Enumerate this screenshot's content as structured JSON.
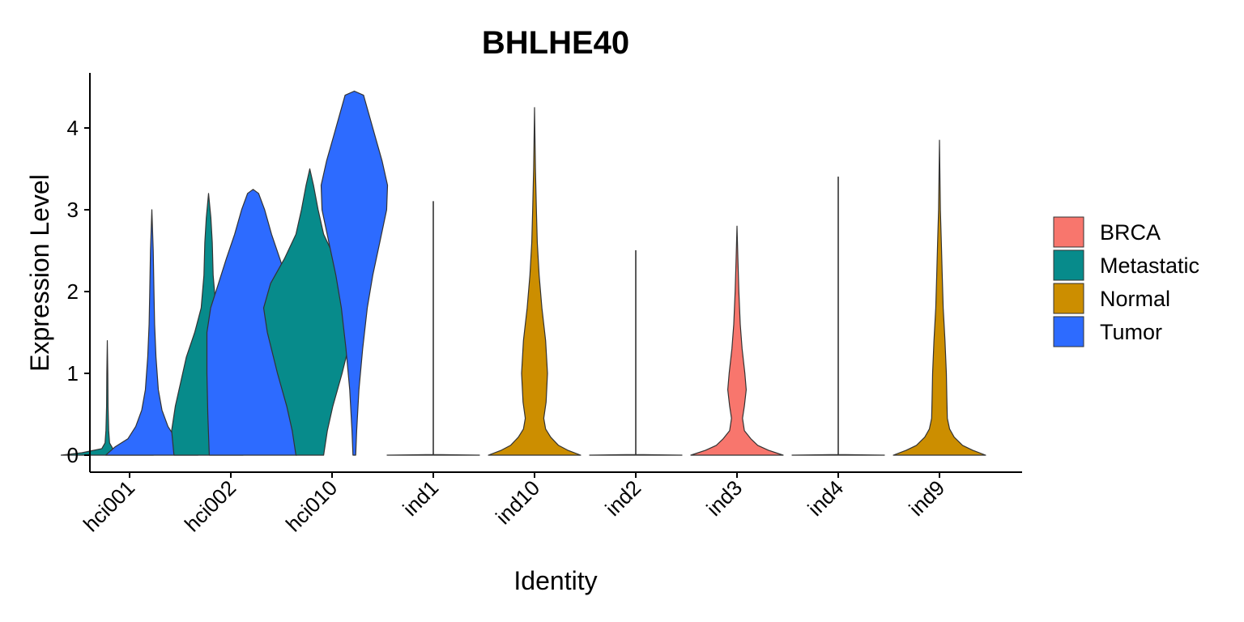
{
  "chart_data": {
    "type": "violin",
    "title": "BHLHE40",
    "xlabel": "Identity",
    "ylabel": "Expression Level",
    "ylim": [
      -0.2,
      4.7
    ],
    "yticks": [
      0,
      1,
      2,
      3,
      4
    ],
    "categories": [
      "hci001",
      "hci002",
      "hci010",
      "ind1",
      "ind10",
      "ind2",
      "ind3",
      "ind4",
      "ind9"
    ],
    "legend": {
      "position": "right",
      "entries": [
        {
          "name": "BRCA",
          "color": "#F8766D"
        },
        {
          "name": "Metastatic",
          "color": "#078B8B"
        },
        {
          "name": "Normal",
          "color": "#CC8E00"
        },
        {
          "name": "Tumor",
          "color": "#2D6BFF"
        }
      ]
    },
    "violins": [
      {
        "category": "hci001",
        "group": "Metastatic",
        "offset": -0.25,
        "max": 1.4,
        "profile": [
          [
            0,
            1
          ],
          [
            0.03,
            0.55
          ],
          [
            0.08,
            0.12
          ],
          [
            0.15,
            0.05
          ],
          [
            0.3,
            0.03
          ],
          [
            0.6,
            0.015
          ],
          [
            1.0,
            0.01
          ],
          [
            1.4,
            0
          ]
        ]
      },
      {
        "category": "hci001",
        "group": "Tumor",
        "offset": 0.25,
        "max": 3.0,
        "profile": [
          [
            0,
            1
          ],
          [
            0.1,
            0.8
          ],
          [
            0.2,
            0.52
          ],
          [
            0.35,
            0.35
          ],
          [
            0.55,
            0.22
          ],
          [
            0.8,
            0.14
          ],
          [
            1.2,
            0.09
          ],
          [
            1.6,
            0.06
          ],
          [
            2.0,
            0.045
          ],
          [
            2.5,
            0.03
          ],
          [
            3.0,
            0
          ]
        ]
      },
      {
        "category": "hci002",
        "group": "Metastatic",
        "offset": -0.25,
        "max": 3.2,
        "profile": [
          [
            0,
            0.75
          ],
          [
            0.3,
            0.8
          ],
          [
            0.6,
            0.72
          ],
          [
            0.9,
            0.6
          ],
          [
            1.2,
            0.48
          ],
          [
            1.5,
            0.3
          ],
          [
            1.8,
            0.16
          ],
          [
            2.2,
            0.1
          ],
          [
            2.6,
            0.08
          ],
          [
            2.9,
            0.05
          ],
          [
            3.2,
            0
          ]
        ]
      },
      {
        "category": "hci002",
        "group": "Tumor",
        "offset": 0.25,
        "max": 3.25,
        "profile": [
          [
            0,
            0.95
          ],
          [
            0.5,
            0.98
          ],
          [
            1.0,
            1.0
          ],
          [
            1.5,
            1.0
          ],
          [
            1.8,
            0.92
          ],
          [
            2.1,
            0.75
          ],
          [
            2.4,
            0.58
          ],
          [
            2.7,
            0.4
          ],
          [
            3.0,
            0.25
          ],
          [
            3.2,
            0.12
          ],
          [
            3.25,
            0
          ]
        ]
      },
      {
        "category": "hci010",
        "group": "Metastatic",
        "offset": -0.25,
        "max": 3.5,
        "profile": [
          [
            0,
            0.3
          ],
          [
            0.3,
            0.38
          ],
          [
            0.6,
            0.5
          ],
          [
            1.0,
            0.7
          ],
          [
            1.5,
            0.92
          ],
          [
            1.8,
            1.0
          ],
          [
            2.1,
            0.85
          ],
          [
            2.4,
            0.55
          ],
          [
            2.7,
            0.3
          ],
          [
            3.0,
            0.18
          ],
          [
            3.3,
            0.08
          ],
          [
            3.5,
            0
          ]
        ]
      },
      {
        "category": "hci010",
        "group": "Tumor",
        "offset": 0.25,
        "max": 4.45,
        "profile": [
          [
            0,
            0.03
          ],
          [
            0.3,
            0.05
          ],
          [
            0.8,
            0.1
          ],
          [
            1.3,
            0.18
          ],
          [
            1.8,
            0.28
          ],
          [
            2.2,
            0.4
          ],
          [
            2.6,
            0.55
          ],
          [
            3.0,
            0.7
          ],
          [
            3.3,
            0.72
          ],
          [
            3.6,
            0.6
          ],
          [
            3.9,
            0.45
          ],
          [
            4.2,
            0.3
          ],
          [
            4.4,
            0.2
          ],
          [
            4.45,
            0
          ]
        ]
      },
      {
        "category": "ind1",
        "group": "Normal",
        "offset": 0,
        "max": 3.1,
        "profile": [
          [
            0,
            1
          ],
          [
            0.008,
            0.003
          ],
          [
            3.1,
            0.003
          ]
        ]
      },
      {
        "category": "ind10",
        "group": "Normal",
        "offset": 0,
        "max": 4.25,
        "profile": [
          [
            0,
            1
          ],
          [
            0.06,
            0.72
          ],
          [
            0.12,
            0.52
          ],
          [
            0.22,
            0.35
          ],
          [
            0.32,
            0.24
          ],
          [
            0.45,
            0.2
          ],
          [
            0.65,
            0.25
          ],
          [
            1.0,
            0.28
          ],
          [
            1.4,
            0.24
          ],
          [
            1.8,
            0.16
          ],
          [
            2.2,
            0.1
          ],
          [
            2.6,
            0.06
          ],
          [
            3.0,
            0.04
          ],
          [
            3.5,
            0.02
          ],
          [
            4.25,
            0
          ]
        ]
      },
      {
        "category": "ind2",
        "group": "Normal",
        "offset": 0,
        "max": 2.5,
        "profile": [
          [
            0,
            1
          ],
          [
            0.008,
            0.003
          ],
          [
            2.5,
            0.003
          ]
        ]
      },
      {
        "category": "ind3",
        "group": "BRCA",
        "offset": 0,
        "max": 2.8,
        "profile": [
          [
            0,
            1
          ],
          [
            0.06,
            0.68
          ],
          [
            0.12,
            0.45
          ],
          [
            0.2,
            0.3
          ],
          [
            0.3,
            0.16
          ],
          [
            0.45,
            0.12
          ],
          [
            0.6,
            0.16
          ],
          [
            0.8,
            0.2
          ],
          [
            1.0,
            0.17
          ],
          [
            1.3,
            0.11
          ],
          [
            1.6,
            0.07
          ],
          [
            2.0,
            0.04
          ],
          [
            2.4,
            0.02
          ],
          [
            2.8,
            0
          ]
        ]
      },
      {
        "category": "ind4",
        "group": "Normal",
        "offset": 0,
        "max": 3.4,
        "profile": [
          [
            0,
            1
          ],
          [
            0.008,
            0.003
          ],
          [
            3.4,
            0.003
          ]
        ]
      },
      {
        "category": "ind9",
        "group": "Normal",
        "offset": 0,
        "max": 3.85,
        "profile": [
          [
            0,
            1
          ],
          [
            0.06,
            0.72
          ],
          [
            0.12,
            0.5
          ],
          [
            0.22,
            0.32
          ],
          [
            0.32,
            0.22
          ],
          [
            0.45,
            0.17
          ],
          [
            0.7,
            0.16
          ],
          [
            1.0,
            0.15
          ],
          [
            1.4,
            0.12
          ],
          [
            1.8,
            0.08
          ],
          [
            2.2,
            0.06
          ],
          [
            2.6,
            0.04
          ],
          [
            3.0,
            0.02
          ],
          [
            3.85,
            0
          ]
        ]
      }
    ]
  }
}
